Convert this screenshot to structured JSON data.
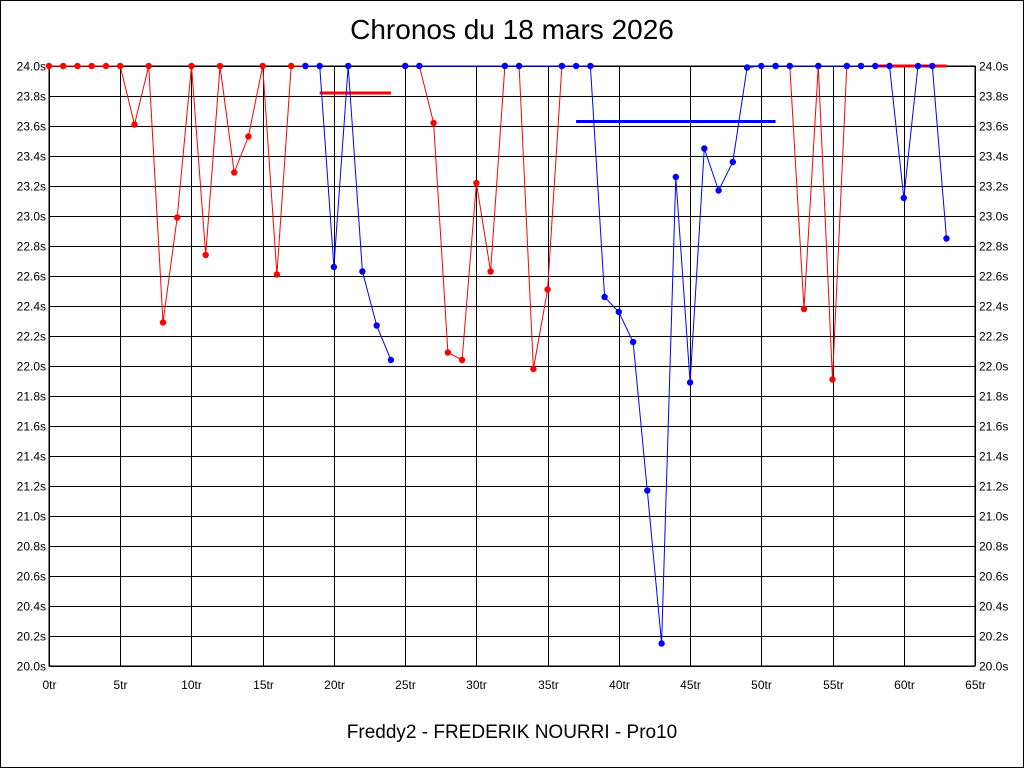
{
  "title": "Chronos du 18 mars 2026",
  "footer": "Freddy2 - FREDERIK NOURRI - Pro10",
  "chart_data": {
    "type": "line",
    "title": "Chronos du 18 mars 2026",
    "xlabel": "",
    "ylabel": "",
    "x_tick_suffix": "tr",
    "y_tick_suffix": "s",
    "xlim": [
      0,
      65
    ],
    "ylim": [
      20.0,
      24.0
    ],
    "x_ticks": [
      0,
      5,
      10,
      15,
      20,
      25,
      30,
      35,
      40,
      45,
      50,
      55,
      60,
      65
    ],
    "y_ticks": [
      20.0,
      20.2,
      20.4,
      20.6,
      20.8,
      21.0,
      21.2,
      21.4,
      21.6,
      21.8,
      22.0,
      22.2,
      22.4,
      22.6,
      22.8,
      23.0,
      23.2,
      23.4,
      23.6,
      23.8,
      24.0
    ],
    "grid": true,
    "y_axis_right": true,
    "series": [
      {
        "color": "#ff0000",
        "points": [
          [
            0,
            24.0
          ],
          [
            1,
            24.0
          ],
          [
            2,
            24.0
          ],
          [
            3,
            24.0
          ],
          [
            4,
            24.0
          ],
          [
            5,
            24.0
          ],
          [
            6,
            23.61
          ],
          [
            7,
            24.0
          ],
          [
            8,
            22.29
          ],
          [
            9,
            22.99
          ],
          [
            10,
            24.0
          ],
          [
            11,
            22.74
          ],
          [
            12,
            24.0
          ],
          [
            13,
            23.29
          ],
          [
            14,
            23.53
          ],
          [
            15,
            24.0
          ],
          [
            16,
            22.61
          ],
          [
            17,
            24.0
          ],
          [
            18,
            24.0
          ]
        ],
        "average": 23.82,
        "average_range": [
          19,
          24
        ]
      },
      {
        "color": "#0000ff",
        "points": [
          [
            18,
            24.0
          ],
          [
            19,
            24.0
          ],
          [
            20,
            22.66
          ],
          [
            21,
            24.0
          ],
          [
            22,
            22.63
          ],
          [
            23,
            22.27
          ],
          [
            24,
            22.04
          ]
        ]
      },
      {
        "color": "#ff0000",
        "points": [
          [
            25,
            24.0
          ],
          [
            26,
            24.0
          ],
          [
            27,
            23.62
          ],
          [
            28,
            22.09
          ],
          [
            29,
            22.04
          ],
          [
            30,
            23.22
          ],
          [
            31,
            22.63
          ],
          [
            32,
            24.0
          ],
          [
            33,
            24.0
          ],
          [
            34,
            21.98
          ],
          [
            35,
            22.51
          ],
          [
            36,
            24.0
          ]
        ]
      },
      {
        "color": "#0000ff",
        "points": [
          [
            25,
            24.0
          ],
          [
            26,
            24.0
          ],
          [
            32,
            24.0
          ],
          [
            33,
            24.0
          ],
          [
            36,
            24.0
          ],
          [
            37,
            24.0
          ],
          [
            38,
            24.0
          ],
          [
            39,
            22.46
          ],
          [
            40,
            22.36
          ],
          [
            41,
            22.16
          ],
          [
            42,
            21.17
          ],
          [
            43,
            20.15
          ],
          [
            44,
            23.26
          ],
          [
            45,
            21.89
          ],
          [
            46,
            23.45
          ],
          [
            47,
            23.17
          ],
          [
            48,
            23.36
          ],
          [
            49,
            23.99
          ],
          [
            50,
            24.0
          ],
          [
            51,
            24.0
          ]
        ],
        "average": 23.63,
        "average_range": [
          37,
          51
        ]
      },
      {
        "color": "#ff0000",
        "points": [
          [
            52,
            24.0
          ],
          [
            53,
            22.38
          ],
          [
            54,
            24.0
          ],
          [
            55,
            21.91
          ],
          [
            56,
            24.0
          ],
          [
            57,
            24.0
          ]
        ],
        "average": 24.0,
        "average_range": [
          58,
          63
        ]
      },
      {
        "color": "#0000ff",
        "points": [
          [
            51,
            24.0
          ],
          [
            52,
            24.0
          ],
          [
            54,
            24.0
          ],
          [
            56,
            24.0
          ],
          [
            57,
            24.0
          ],
          [
            58,
            24.0
          ],
          [
            59,
            24.0
          ],
          [
            60,
            23.12
          ],
          [
            61,
            24.0
          ],
          [
            62,
            24.0
          ],
          [
            63,
            22.85
          ]
        ]
      }
    ]
  }
}
